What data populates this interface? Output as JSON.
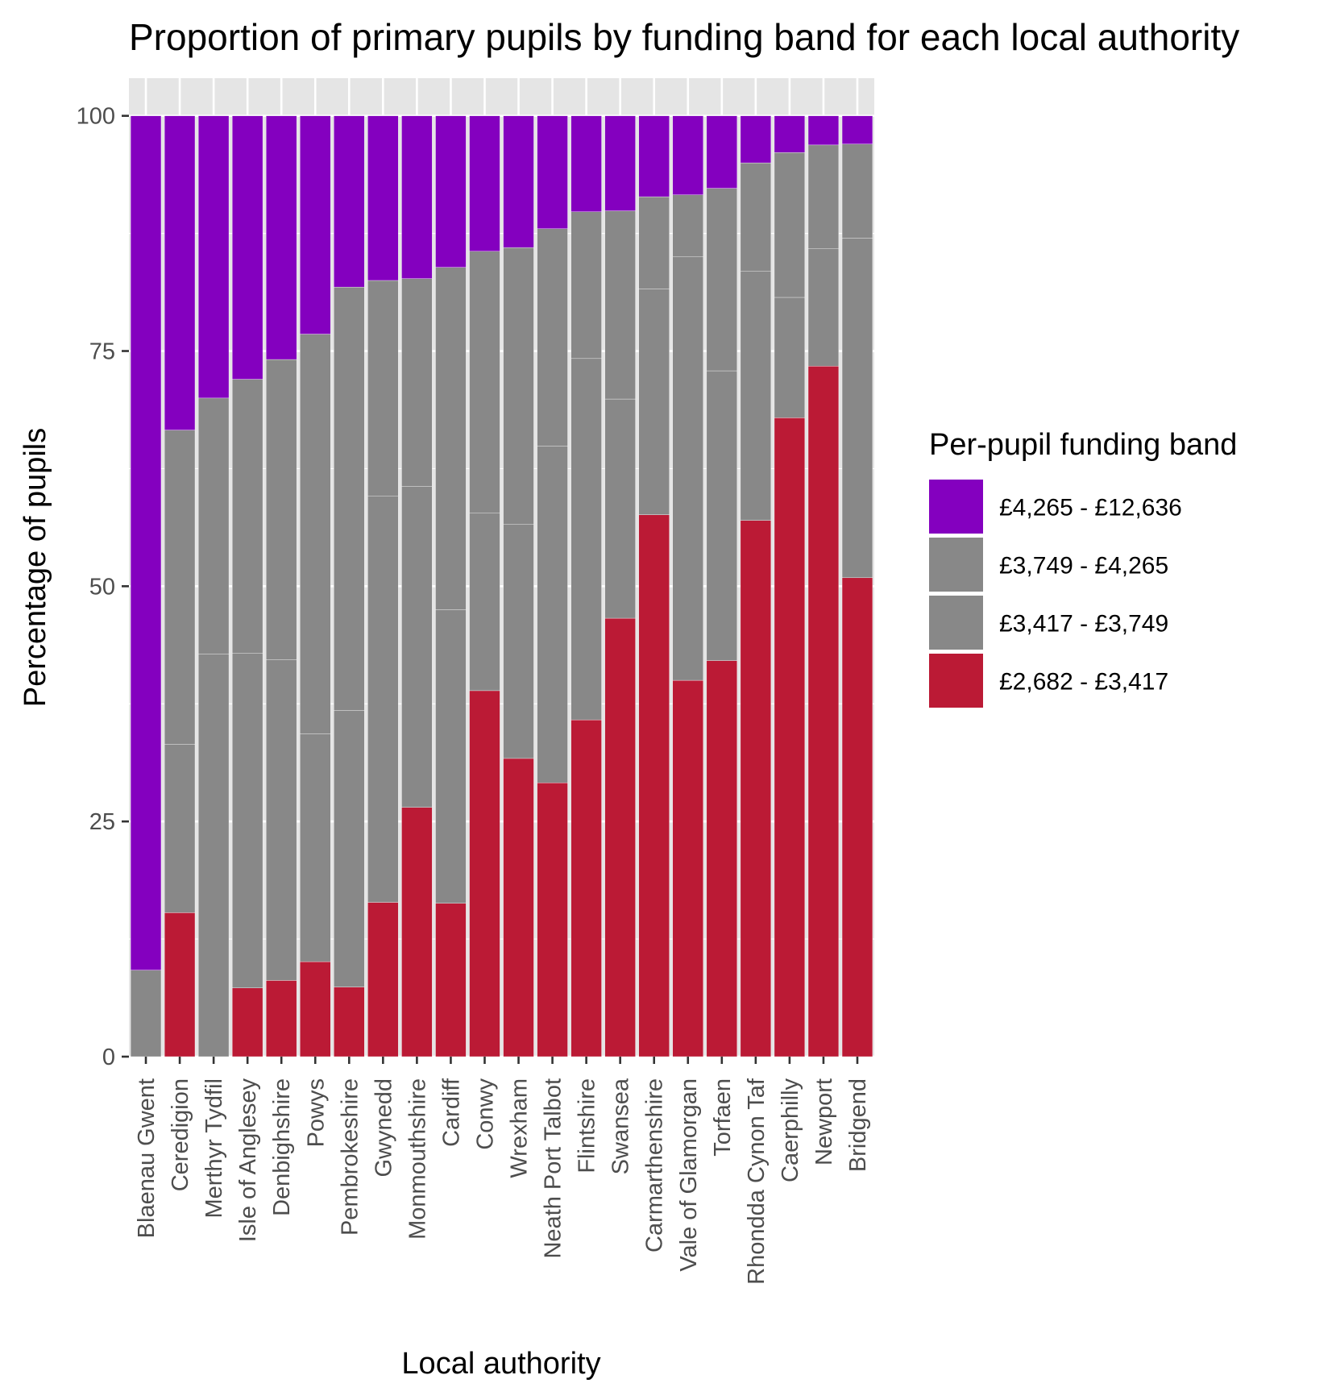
{
  "chart_data": {
    "type": "bar",
    "stacked": true,
    "title": "Proportion of primary pupils by funding band for each local authority",
    "xlabel": "Local authority",
    "ylabel": "Percentage of pupils",
    "ylim": [
      0,
      104
    ],
    "yticks": [
      0,
      25,
      50,
      75,
      100
    ],
    "grid": true,
    "legend_position": "right",
    "legend_title": "Per-pupil funding band",
    "categories": [
      "Blaenau Gwent",
      "Ceredigion",
      "Merthyr Tydfil",
      "Isle of Anglesey",
      "Denbighshire",
      "Powys",
      "Pembrokeshire",
      "Gwynedd",
      "Monmouthshire",
      "Cardiff",
      "Conwy",
      "Wrexham",
      "Neath Port Talbot",
      "Flintshire",
      "Swansea",
      "Carmarthenshire",
      "Vale of Glamorgan",
      "Torfaen",
      "Rhondda Cynon Taf",
      "Caerphilly",
      "Newport",
      "Bridgend"
    ],
    "series": [
      {
        "name": "£2,682 - £3,417",
        "color": "#bb1a35",
        "values": [
          0,
          15.3,
          0,
          7.3,
          8.1,
          10.1,
          7.4,
          16.4,
          26.5,
          16.3,
          38.9,
          31.7,
          29.1,
          35.8,
          46.6,
          57.6,
          40.0,
          42.1,
          57.0,
          67.9,
          73.4,
          50.9
        ]
      },
      {
        "name": "£3,417 - £3,749",
        "color": "#888888",
        "values": [
          9.2,
          17.9,
          42.8,
          35.6,
          34.1,
          24.2,
          29.4,
          43.2,
          34.1,
          31.2,
          18.9,
          24.9,
          35.8,
          38.4,
          23.3,
          24.0,
          45.0,
          30.8,
          26.5,
          12.8,
          12.5,
          36.1
        ]
      },
      {
        "name": "£3,749 - £4,265",
        "color": "#888888",
        "values": [
          0,
          33.4,
          27.2,
          29.1,
          31.9,
          42.5,
          45.0,
          22.9,
          22.1,
          36.4,
          27.8,
          29.4,
          23.1,
          15.6,
          20.0,
          9.8,
          6.6,
          19.4,
          11.5,
          15.4,
          11.0,
          10.0
        ]
      },
      {
        "name": "£4,265 - £12,636",
        "color": "#8400bf",
        "values": [
          90.8,
          33.4,
          30.0,
          28.0,
          25.9,
          23.2,
          18.2,
          17.5,
          17.3,
          16.1,
          14.4,
          14.0,
          12.0,
          10.2,
          10.1,
          8.6,
          8.4,
          7.7,
          5.0,
          3.9,
          3.1,
          3.0
        ]
      }
    ]
  }
}
